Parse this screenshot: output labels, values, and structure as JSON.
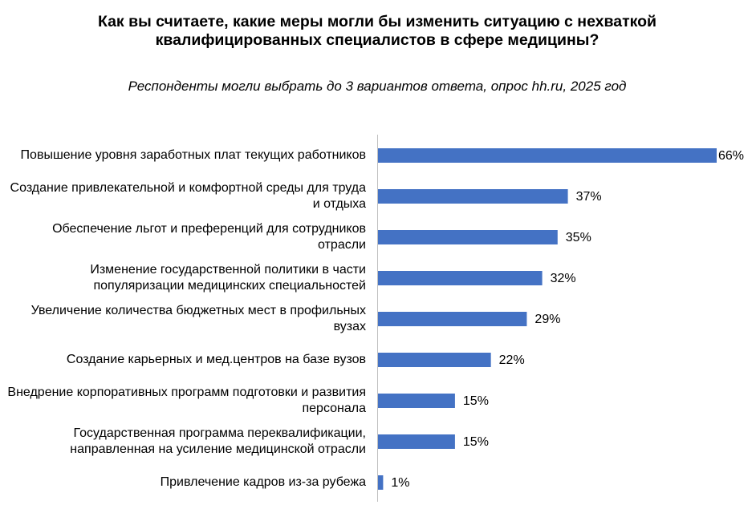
{
  "chart_data": {
    "type": "bar",
    "orientation": "horizontal",
    "title": "Как вы считаете, какие меры могли бы изменить ситуацию с нехваткой квалифицированных специалистов в сфере медицины?",
    "subtitle": "Респонденты могли выбрать до 3 вариантов ответа, опрос hh.ru, 2025 год",
    "categories": [
      "Повышение уровня заработных плат текущих работников",
      "Создание привлекательной и комфортной среды для труда и отдыха",
      "Обеспечение льгот и преференций для сотрудников отрасли",
      "Изменение государственной политики в части популяризации медицинских специальностей",
      "Увеличение количества бюджетных мест в профильных вузах",
      "Создание карьерных и мед.центров на базе вузов",
      "Внедрение корпоративных программ подготовки и развития персонала",
      "Государственная программа переквалификации, направленная на усиление медицинской отрасли",
      "Привлечение кадров из-за рубежа"
    ],
    "values": [
      66,
      37,
      35,
      32,
      29,
      22,
      15,
      15,
      1
    ],
    "value_labels": [
      "66%",
      "37%",
      "35%",
      "32%",
      "29%",
      "22%",
      "15%",
      "15%",
      "1%"
    ],
    "color": "#4472c4"
  }
}
